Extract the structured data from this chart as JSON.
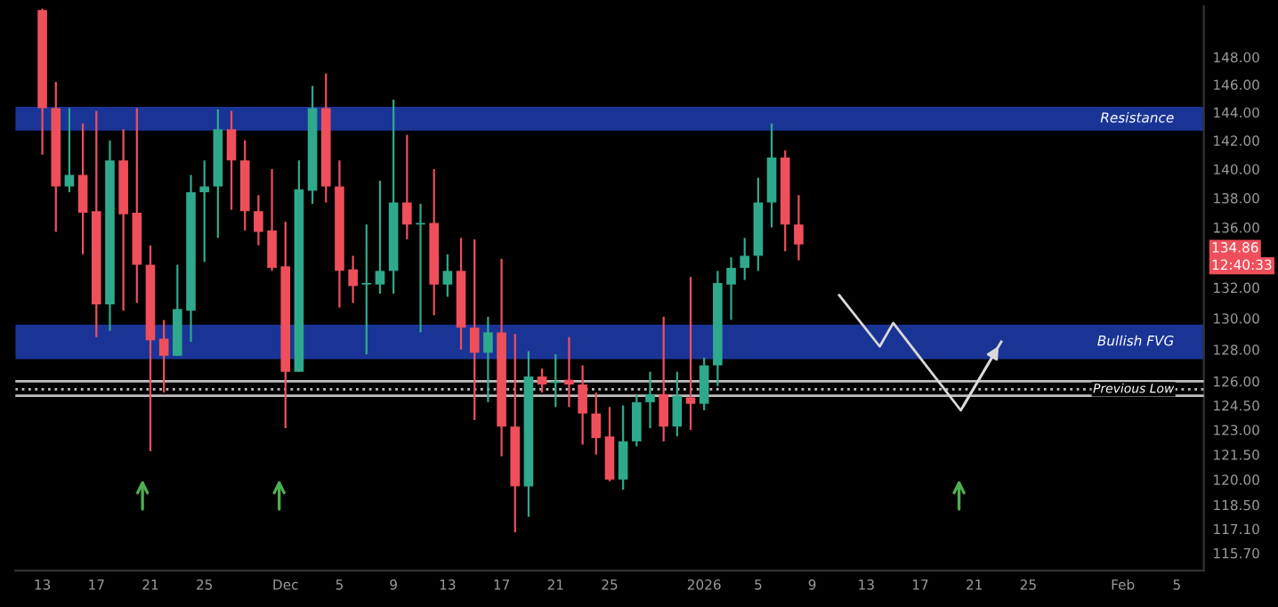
{
  "chart_data": {
    "type": "candlestick",
    "x": [
      "2025-11-13",
      "2025-11-14",
      "2025-11-15",
      "2025-11-16",
      "2025-11-17",
      "2025-11-18",
      "2025-11-19",
      "2025-11-20",
      "2025-11-21",
      "2025-11-22",
      "2025-11-23",
      "2025-11-24",
      "2025-11-25",
      "2025-11-26",
      "2025-11-27",
      "2025-11-28",
      "2025-11-29",
      "2025-11-30",
      "2025-12-01",
      "2025-12-02",
      "2025-12-03",
      "2025-12-04",
      "2025-12-05",
      "2025-12-06",
      "2025-12-07",
      "2025-12-08",
      "2025-12-09",
      "2025-12-10",
      "2025-12-11",
      "2025-12-12",
      "2025-12-13",
      "2025-12-14",
      "2025-12-15",
      "2025-12-16",
      "2025-12-17",
      "2025-12-18",
      "2025-12-19",
      "2025-12-20",
      "2025-12-21",
      "2025-12-22",
      "2025-12-23",
      "2025-12-24",
      "2025-12-25",
      "2025-12-26",
      "2025-12-27",
      "2025-12-28",
      "2025-12-29",
      "2025-12-30",
      "2025-12-31",
      "2026-01-01",
      "2026-01-02",
      "2026-01-03",
      "2026-01-04",
      "2026-01-05",
      "2026-01-06",
      "2026-01-07",
      "2026-01-08"
    ],
    "ohlc": [
      [
        151.5,
        151.6,
        141.0,
        144.3
      ],
      [
        144.3,
        146.2,
        135.7,
        138.8
      ],
      [
        138.8,
        144.3,
        138.4,
        139.6
      ],
      [
        139.6,
        143.2,
        134.2,
        137.0
      ],
      [
        137.1,
        144.1,
        128.8,
        130.9
      ],
      [
        130.9,
        142.0,
        129.2,
        140.6
      ],
      [
        140.6,
        142.8,
        130.5,
        136.9
      ],
      [
        137.0,
        144.3,
        131.0,
        133.5
      ],
      [
        133.5,
        134.8,
        121.7,
        128.6
      ],
      [
        128.7,
        129.9,
        125.3,
        127.6
      ],
      [
        127.6,
        133.5,
        127.6,
        130.6
      ],
      [
        130.5,
        139.6,
        128.5,
        138.4
      ],
      [
        138.4,
        140.6,
        133.7,
        138.8
      ],
      [
        138.8,
        144.2,
        135.3,
        142.8
      ],
      [
        142.8,
        144.1,
        137.2,
        140.6
      ],
      [
        140.6,
        142.0,
        135.8,
        137.1
      ],
      [
        137.1,
        138.2,
        134.8,
        135.7
      ],
      [
        135.8,
        140.0,
        133.1,
        133.3
      ],
      [
        133.4,
        136.4,
        123.1,
        126.6
      ],
      [
        126.6,
        140.6,
        126.6,
        138.6
      ],
      [
        138.5,
        145.9,
        137.6,
        144.3
      ],
      [
        144.3,
        146.8,
        137.7,
        138.8
      ],
      [
        138.8,
        140.6,
        130.7,
        133.1
      ],
      [
        133.2,
        134.1,
        131.0,
        132.1
      ],
      [
        132.2,
        136.2,
        127.7,
        132.3
      ],
      [
        132.2,
        139.2,
        131.6,
        133.1
      ],
      [
        133.1,
        144.9,
        131.6,
        137.7
      ],
      [
        137.7,
        142.4,
        135.2,
        136.2
      ],
      [
        136.2,
        137.6,
        129.1,
        136.3
      ],
      [
        136.3,
        140.0,
        130.2,
        132.2
      ],
      [
        132.2,
        134.2,
        131.4,
        133.1
      ],
      [
        133.1,
        135.3,
        128.0,
        129.4
      ],
      [
        129.4,
        135.2,
        123.6,
        127.8
      ],
      [
        127.8,
        130.1,
        124.7,
        129.1
      ],
      [
        129.1,
        133.9,
        121.4,
        123.2
      ],
      [
        123.2,
        129.0,
        116.9,
        119.6
      ],
      [
        119.6,
        127.9,
        117.8,
        126.3
      ],
      [
        126.3,
        126.8,
        125.3,
        125.8
      ],
      [
        125.9,
        127.7,
        124.4,
        126.0
      ],
      [
        126.1,
        128.8,
        124.4,
        125.8
      ],
      [
        125.8,
        127.0,
        122.1,
        124.0
      ],
      [
        124.0,
        125.3,
        121.5,
        122.5
      ],
      [
        122.6,
        124.4,
        119.9,
        120.0
      ],
      [
        120.0,
        124.5,
        119.4,
        122.3
      ],
      [
        122.3,
        125.2,
        122.0,
        124.7
      ],
      [
        124.7,
        126.6,
        123.1,
        125.2
      ],
      [
        125.2,
        130.1,
        122.3,
        123.2
      ],
      [
        123.2,
        126.6,
        122.6,
        125.1
      ],
      [
        125.0,
        132.7,
        123.0,
        124.6
      ],
      [
        124.6,
        127.5,
        124.2,
        127.0
      ],
      [
        127.0,
        133.1,
        125.7,
        132.3
      ],
      [
        132.2,
        134.0,
        129.9,
        133.3
      ],
      [
        133.3,
        135.3,
        132.5,
        134.1
      ],
      [
        134.1,
        139.4,
        133.1,
        137.7
      ],
      [
        137.7,
        143.2,
        136.0,
        140.8
      ],
      [
        140.8,
        141.3,
        134.4,
        136.2
      ],
      [
        136.2,
        138.2,
        133.8,
        134.86
      ]
    ],
    "colors": [
      "#ef4f5a",
      "#ef4f5a",
      "#2fa98c",
      "#ef4f5a",
      "#ef4f5a",
      "#2fa98c",
      "#ef4f5a",
      "#ef4f5a",
      "#ef4f5a",
      "#ef4f5a",
      "#2fa98c",
      "#2fa98c",
      "#2fa98c",
      "#2fa98c",
      "#ef4f5a",
      "#ef4f5a",
      "#ef4f5a",
      "#ef4f5a",
      "#ef4f5a",
      "#2fa98c",
      "#2fa98c",
      "#ef4f5a",
      "#ef4f5a",
      "#ef4f5a",
      "#2fa98c",
      "#2fa98c",
      "#2fa98c",
      "#ef4f5a",
      "#2fa98c",
      "#ef4f5a",
      "#2fa98c",
      "#ef4f5a",
      "#ef4f5a",
      "#2fa98c",
      "#ef4f5a",
      "#ef4f5a",
      "#2fa98c",
      "#ef4f5a",
      "#2fa98c",
      "#ef4f5a",
      "#ef4f5a",
      "#ef4f5a",
      "#ef4f5a",
      "#2fa98c",
      "#2fa98c",
      "#2fa98c",
      "#ef4f5a",
      "#2fa98c",
      "#ef4f5a",
      "#2fa98c",
      "#2fa98c",
      "#2fa98c",
      "#2fa98c",
      "#2fa98c",
      "#2fa98c",
      "#ef4f5a",
      "#ef4f5a"
    ],
    "series": [
      {
        "type": "line",
        "x": [
          "2026-01-11",
          "2026-01-14",
          "2026-01-15",
          "2026-01-20",
          "2026-01-23"
        ],
        "values": [
          131.5,
          128.2,
          129.7,
          124.2,
          128.5
        ],
        "color": "#d9d9d9"
      }
    ],
    "bands": [
      {
        "axis": "y",
        "from": 142.7,
        "to": 144.4,
        "label": "Resistance",
        "color": "#1d3aa6"
      },
      {
        "axis": "y",
        "from": 127.4,
        "to": 129.6,
        "label": "Bullish FVG",
        "color": "#1d3aa6"
      }
    ],
    "ref_lines": [
      {
        "axis": "y",
        "value": 126.0,
        "color": "#bfbfbf",
        "line_style": "solid"
      },
      {
        "axis": "y",
        "value": 125.5,
        "label": "Previous Low",
        "color": "#bfbfbf",
        "line_style": "dotted"
      },
      {
        "axis": "y",
        "value": 125.1,
        "color": "#bfbfbf",
        "line_style": "solid"
      }
    ],
    "annotations": [
      "134.86",
      "12:40:33"
    ],
    "log": true,
    "xlim": [
      "2025-11-11",
      "2026-02-07"
    ],
    "ylim": [
      114.7,
      151.8
    ],
    "xticks": [
      {
        "value": "2025-11-13",
        "label": "13"
      },
      {
        "value": "2025-11-17",
        "label": "17"
      },
      {
        "value": "2025-11-21",
        "label": "21"
      },
      {
        "value": "2025-11-25",
        "label": "25"
      },
      {
        "value": "2025-12-01",
        "label": "Dec"
      },
      {
        "value": "2025-12-05",
        "label": "5"
      },
      {
        "value": "2025-12-09",
        "label": "9"
      },
      {
        "value": "2025-12-13",
        "label": "13"
      },
      {
        "value": "2025-12-17",
        "label": "17"
      },
      {
        "value": "2025-12-21",
        "label": "21"
      },
      {
        "value": "2025-12-25",
        "label": "25"
      },
      {
        "value": "2026-01-01",
        "label": "2026"
      },
      {
        "value": "2026-01-05",
        "label": "5"
      },
      {
        "value": "2026-01-09",
        "label": "9"
      },
      {
        "value": "2026-01-13",
        "label": "13"
      },
      {
        "value": "2026-01-17",
        "label": "17"
      },
      {
        "value": "2026-01-21",
        "label": "21"
      },
      {
        "value": "2026-01-25",
        "label": "25"
      },
      {
        "value": "2026-02-01",
        "label": "Feb"
      },
      {
        "value": "2026-02-05",
        "label": "5"
      }
    ],
    "yticks": [
      {
        "value": 148,
        "label": "148.00"
      },
      {
        "value": 146,
        "label": "146.00"
      },
      {
        "value": 144,
        "label": "144.00"
      },
      {
        "value": 142,
        "label": "142.00"
      },
      {
        "value": 140,
        "label": "140.00"
      },
      {
        "value": 138,
        "label": "138.00"
      },
      {
        "value": 136,
        "label": "136.00"
      },
      {
        "value": 132,
        "label": "132.00"
      },
      {
        "value": 130,
        "label": "130.00"
      },
      {
        "value": 128,
        "label": "128.00"
      },
      {
        "value": 126,
        "label": "126.00"
      },
      {
        "value": 124.5,
        "label": "124.50"
      },
      {
        "value": 123,
        "label": "123.00"
      },
      {
        "value": 121.5,
        "label": "121.50"
      },
      {
        "value": 120,
        "label": "120.00"
      },
      {
        "value": 118.5,
        "label": "118.50"
      },
      {
        "value": 117.1,
        "label": "117.10"
      },
      {
        "value": 115.7,
        "label": "115.70"
      }
    ],
    "grid": false
  }
}
